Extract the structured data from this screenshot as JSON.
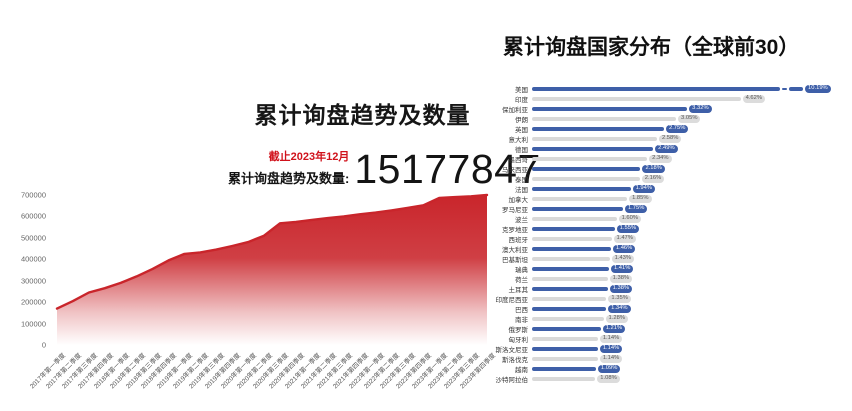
{
  "left_chart": {
    "title": "累计询盘趋势及数量",
    "as_of": "截止2023年12月",
    "stat_label": "累计询盘趋势及数量:",
    "total": "15177847"
  },
  "right_chart": {
    "title": "累计询盘国家分布（全球前30）"
  },
  "colors": {
    "trend_red": "#c9252b",
    "bar_blue": "#3e5fa8",
    "bar_gray": "#d9d9d9",
    "badge_gray_bg": "#dcdcdc",
    "badge_gray_text": "#555555",
    "badge_blue_text": "#ffffff",
    "axis_text": "#666666"
  },
  "chart_data": [
    {
      "type": "area",
      "title": "累计询盘趋势及数量",
      "xlabel": "",
      "ylabel": "",
      "ylim": [
        0,
        700000
      ],
      "yticks": [
        0,
        100000,
        200000,
        300000,
        400000,
        500000,
        600000,
        700000
      ],
      "grid": false,
      "legend": "none",
      "line_color": "#c9252b",
      "x": [
        "2017年第一季度",
        "2017年第二季度",
        "2017年第三季度",
        "2017年第四季度",
        "2018年第一季度",
        "2018年第二季度",
        "2018年第三季度",
        "2018年第四季度",
        "2019年第一季度",
        "2019年第二季度",
        "2019年第三季度",
        "2019年第四季度",
        "2020年第一季度",
        "2020年第二季度",
        "2020年第三季度",
        "2020年第四季度",
        "2021年第一季度",
        "2021年第二季度",
        "2021年第三季度",
        "2021年第四季度",
        "2022年第一季度",
        "2022年第二季度",
        "2022年第三季度",
        "2022年第四季度",
        "2023年第一季度",
        "2023年第二季度",
        "2023年第三季度",
        "2023年第四季度"
      ],
      "values": [
        170000,
        205000,
        245000,
        265000,
        290000,
        320000,
        355000,
        395000,
        425000,
        432000,
        445000,
        462000,
        480000,
        510000,
        568000,
        574000,
        584000,
        592000,
        600000,
        610000,
        618000,
        628000,
        640000,
        652000,
        686000,
        690000,
        694000,
        700000
      ]
    },
    {
      "type": "bar",
      "orientation": "horizontal",
      "title": "累计询盘国家分布（全球前30）",
      "xlabel": "",
      "ylabel": "",
      "legend": "none",
      "grid": false,
      "first_bar_truncated": true,
      "categories": [
        "美国",
        "印度",
        "保加利亚",
        "伊朗",
        "英国",
        "意大利",
        "德国",
        "墨西哥",
        "马来西亚",
        "泰国",
        "法国",
        "加拿大",
        "罗马尼亚",
        "波兰",
        "克罗地亚",
        "西班牙",
        "澳大利亚",
        "巴基斯坦",
        "瑞典",
        "荷兰",
        "土耳其",
        "印度尼西亚",
        "巴西",
        "南非",
        "俄罗斯",
        "匈牙利",
        "斯洛文尼亚",
        "斯洛伐克",
        "越南",
        "沙特阿拉伯"
      ],
      "values": [
        10.19,
        4.62,
        3.32,
        3.05,
        2.75,
        2.58,
        2.49,
        2.34,
        2.18,
        2.16,
        1.94,
        1.85,
        1.75,
        1.6,
        1.55,
        1.47,
        1.46,
        1.43,
        1.41,
        1.38,
        1.38,
        1.35,
        1.34,
        1.28,
        1.21,
        1.14,
        1.14,
        1.14,
        1.09,
        1.08
      ],
      "labels": [
        "10.19%",
        "4.62%",
        "3.32%",
        "3.05%",
        "2.75%",
        "2.58%",
        "2.49%",
        "2.34%",
        "2.18%",
        "2.16%",
        "1.94%",
        "1.85%",
        "1.75%",
        "1.60%",
        "1.55%",
        "1.47%",
        "1.46%",
        "1.43%",
        "1.41%",
        "1.38%",
        "1.38%",
        "1.35%",
        "1.34%",
        "1.28%",
        "1.21%",
        "1.14%",
        "1.14%",
        "1.14%",
        "1.09%",
        "1.08%"
      ]
    }
  ]
}
